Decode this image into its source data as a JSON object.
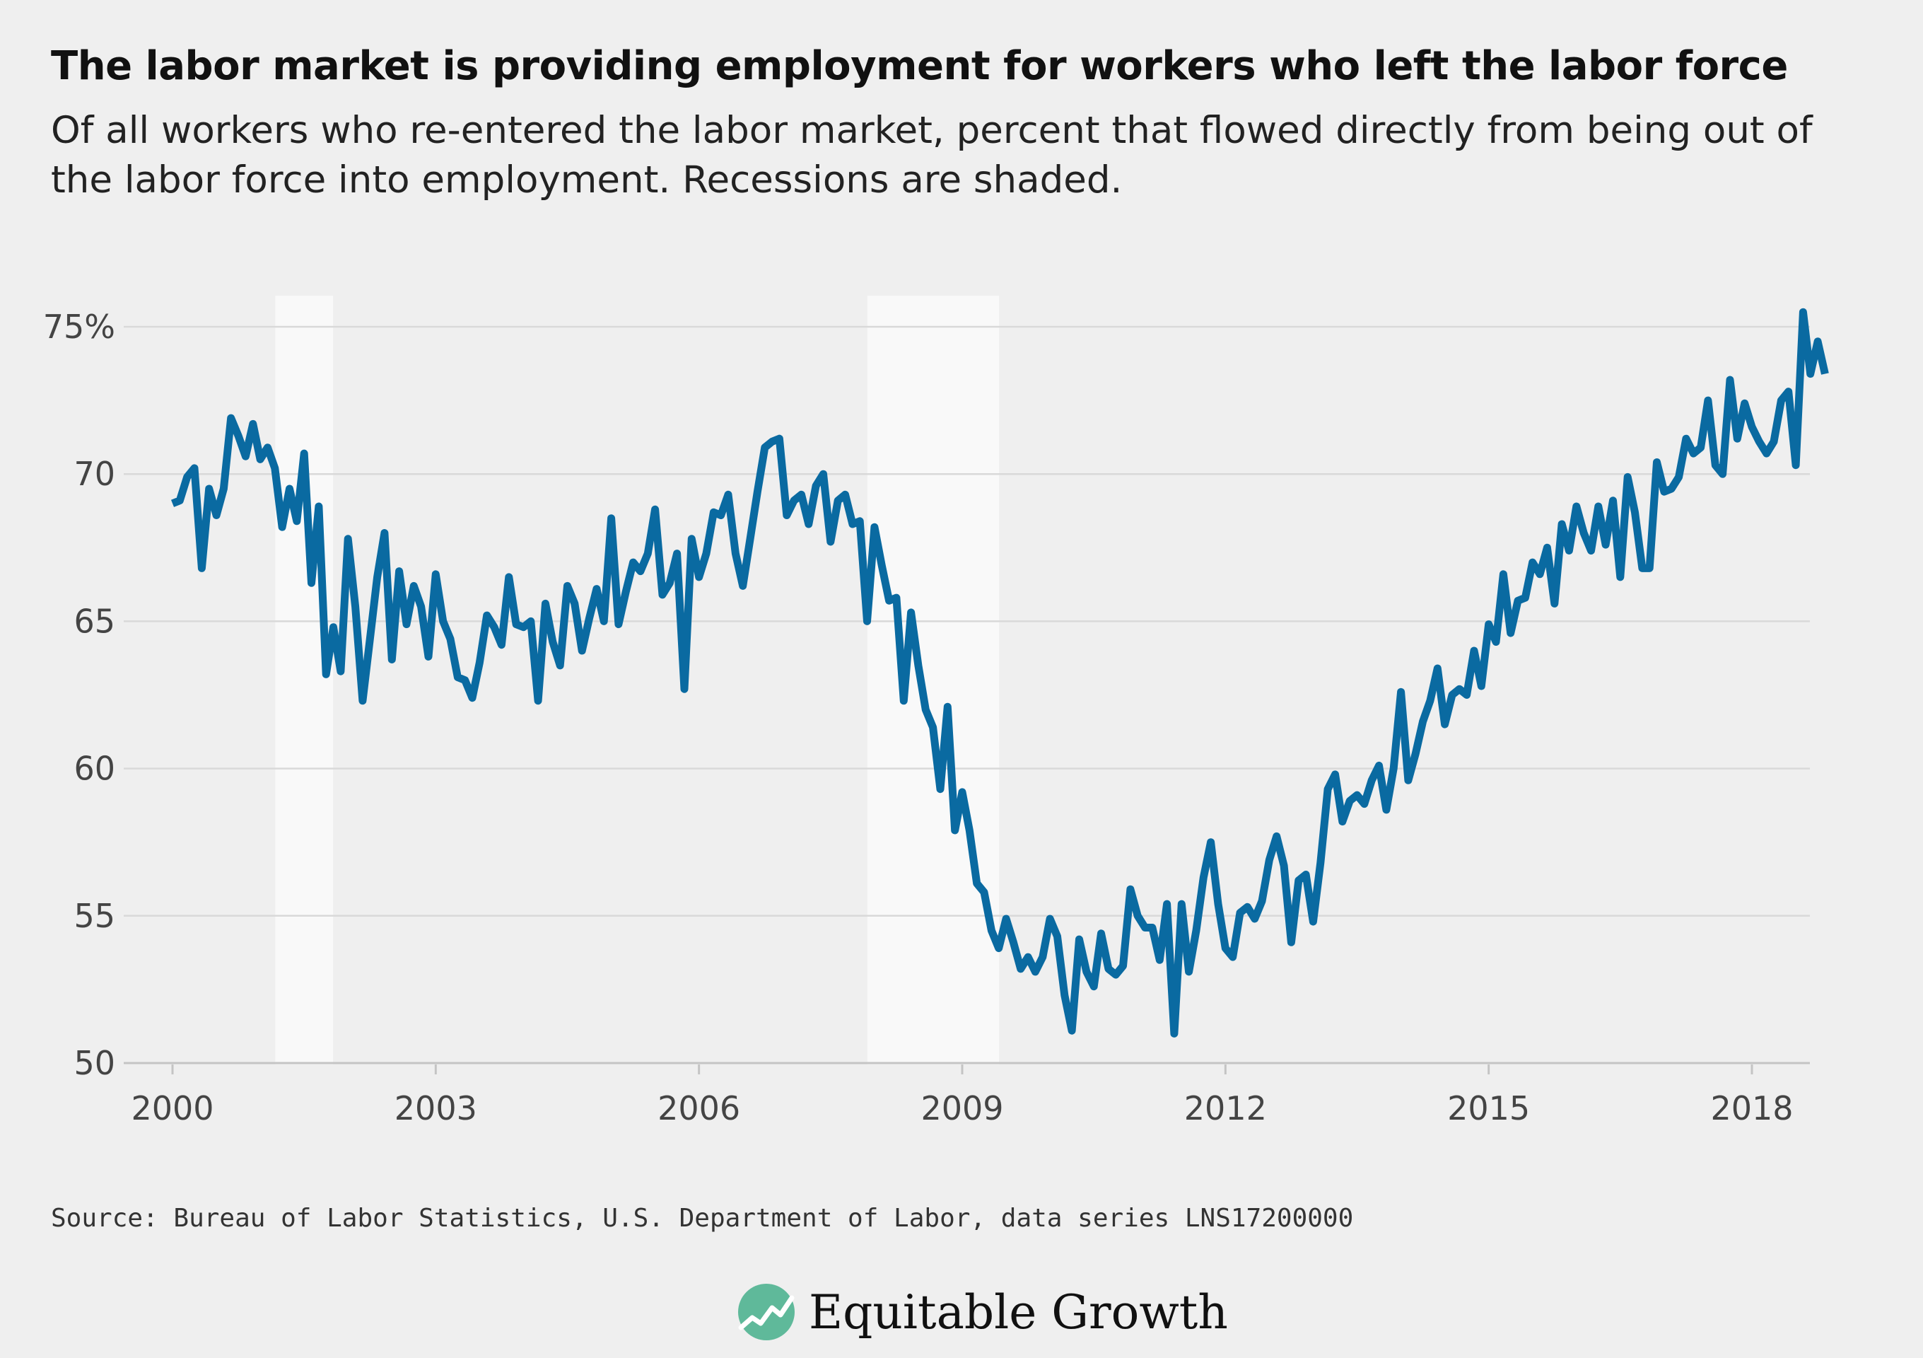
{
  "title": "The labor market is providing employment for workers who left the labor force",
  "subtitle": "Of all workers who re-entered the labor market, percent that flowed directly from being out of the labor force into employment. Recessions are shaded.",
  "source": "Source: Bureau of Labor Statistics, U.S. Department of Labor, data series LNS17200000",
  "brand": {
    "name": "Equitable Growth",
    "logo_icon": "growth-chart-logo-icon"
  },
  "colors": {
    "line": "#0a6aa1",
    "recession": "#f9f9f9",
    "grid": "#d9d9d9",
    "background": "#efefef"
  },
  "chart_data": {
    "type": "line",
    "title": "The labor market is providing employment for workers who left the labor force",
    "xlabel": "",
    "ylabel": "",
    "xlim": [
      2000,
      2018.85
    ],
    "ylim": [
      50,
      76
    ],
    "y_ticks": [
      50,
      55,
      60,
      65,
      70,
      75
    ],
    "y_tick_labels": [
      "50",
      "55",
      "60",
      "65",
      "70",
      "75%"
    ],
    "x_ticks": [
      2000,
      2003,
      2006,
      2009,
      2012,
      2015,
      2018
    ],
    "x_tick_labels": [
      "2000",
      "2003",
      "2006",
      "2009",
      "2012",
      "2015",
      "2018"
    ],
    "grid": "horizontal",
    "recessions": [
      [
        2001.17,
        2001.83
      ],
      [
        2007.92,
        2009.42
      ]
    ],
    "series": [
      {
        "name": "",
        "frequency": "monthly",
        "start": 2000.0,
        "values": [
          69.0,
          69.1,
          69.9,
          70.2,
          66.8,
          69.5,
          68.6,
          69.5,
          71.9,
          71.3,
          70.6,
          71.7,
          70.5,
          70.9,
          70.2,
          68.2,
          69.5,
          68.4,
          70.7,
          66.3,
          68.9,
          63.2,
          64.8,
          63.3,
          67.8,
          65.5,
          62.3,
          64.4,
          66.5,
          68.0,
          63.7,
          66.7,
          64.9,
          66.2,
          65.5,
          63.8,
          66.6,
          65.0,
          64.4,
          63.1,
          63.0,
          62.4,
          63.6,
          65.2,
          64.8,
          64.2,
          66.5,
          64.9,
          64.8,
          65.0,
          62.3,
          65.6,
          64.3,
          63.5,
          66.2,
          65.6,
          64.0,
          65.1,
          66.1,
          65.0,
          68.5,
          64.9,
          66.0,
          67.0,
          66.7,
          67.3,
          68.8,
          65.9,
          66.3,
          67.3,
          62.7,
          67.8,
          66.5,
          67.3,
          68.7,
          68.6,
          69.3,
          67.3,
          66.2,
          67.8,
          69.4,
          70.9,
          71.1,
          71.2,
          68.6,
          69.1,
          69.3,
          68.3,
          69.6,
          70.0,
          67.7,
          69.1,
          69.3,
          68.3,
          68.4,
          65.0,
          68.2,
          66.9,
          65.7,
          65.8,
          62.3,
          65.3,
          63.5,
          62.0,
          61.4,
          59.3,
          62.1,
          57.9,
          59.2,
          57.9,
          56.1,
          55.8,
          54.5,
          53.9,
          54.9,
          54.1,
          53.2,
          53.6,
          53.1,
          53.6,
          54.9,
          54.3,
          52.3,
          51.1,
          54.2,
          53.1,
          52.6,
          54.4,
          53.2,
          53.0,
          53.3,
          55.9,
          55.0,
          54.6,
          54.6,
          53.5,
          55.4,
          51.0,
          55.4,
          53.1,
          54.5,
          56.3,
          57.5,
          55.4,
          53.9,
          53.6,
          55.1,
          55.3,
          54.9,
          55.5,
          56.9,
          57.7,
          56.7,
          54.1,
          56.2,
          56.4,
          54.8,
          56.8,
          59.3,
          59.8,
          58.2,
          58.9,
          59.1,
          58.8,
          59.6,
          60.1,
          58.6,
          60.0,
          62.6,
          59.6,
          60.5,
          61.6,
          62.3,
          63.4,
          61.5,
          62.5,
          62.7,
          62.5,
          64.0,
          62.8,
          64.9,
          64.3,
          66.6,
          64.6,
          65.7,
          65.8,
          67.0,
          66.6,
          67.5,
          65.6,
          68.3,
          67.4,
          68.9,
          68.0,
          67.4,
          68.9,
          67.6,
          69.1,
          66.5,
          69.9,
          68.7,
          66.8,
          66.8,
          70.4,
          69.4,
          69.5,
          69.9,
          71.2,
          70.7,
          70.9,
          72.5,
          70.3,
          70.0,
          73.2,
          71.2,
          72.4,
          71.6,
          71.1,
          70.7,
          71.1,
          72.5,
          72.8,
          70.3,
          75.5,
          73.4,
          74.5,
          73.4
        ]
      }
    ]
  }
}
